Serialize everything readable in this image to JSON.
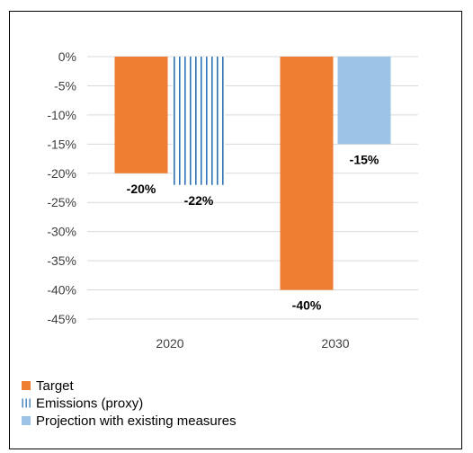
{
  "chart_data": {
    "type": "bar",
    "title": "",
    "xlabel": "",
    "ylabel": "",
    "categories": [
      "2020",
      "2030"
    ],
    "ylim": [
      -45,
      0
    ],
    "ytick_step": 5,
    "ytick_format": "percent",
    "grid": true,
    "legend_placement": "bottom-left",
    "series": [
      {
        "name": "Target",
        "values": [
          -20,
          -40
        ],
        "labels": [
          "-20%",
          "-40%"
        ],
        "color": "#ED7D31",
        "pattern": "solid"
      },
      {
        "name": "Emissions (proxy)",
        "values": [
          -22,
          null
        ],
        "labels": [
          "-22%",
          ""
        ],
        "color": "#2E75B6",
        "pattern": "vertical-lines"
      },
      {
        "name": "Projection with existing measures",
        "values": [
          null,
          -15
        ],
        "labels": [
          "",
          "-15%"
        ],
        "color": "#9DC3E6",
        "pattern": "solid"
      }
    ]
  }
}
